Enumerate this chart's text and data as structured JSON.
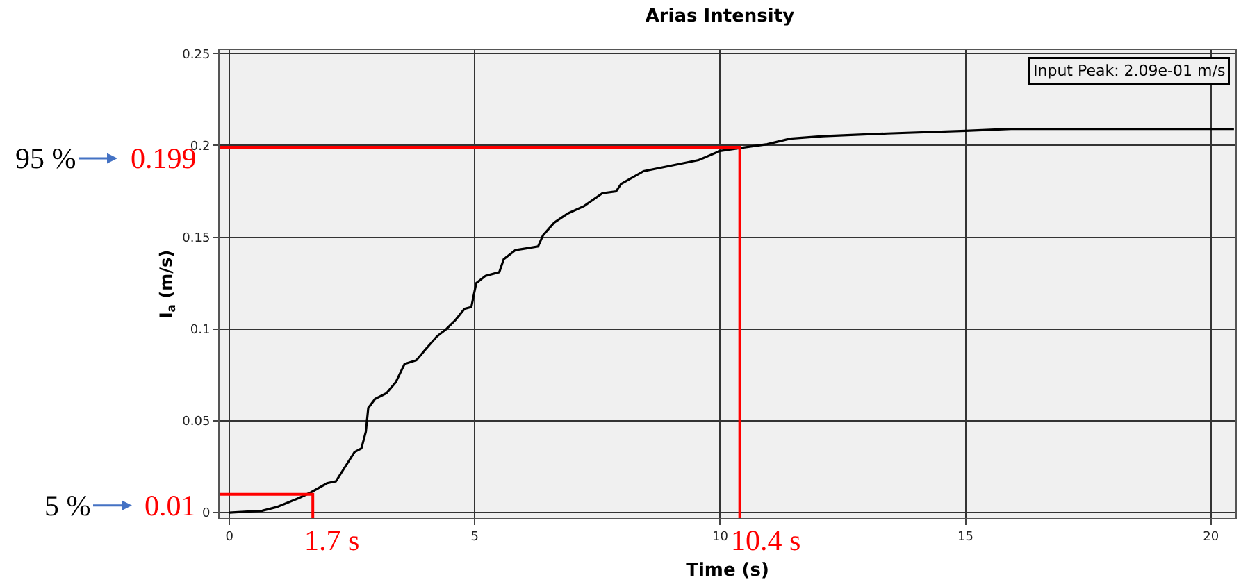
{
  "chart_data": {
    "type": "line",
    "title": "Arias Intensity",
    "xlabel": "Time (s)",
    "ylabel": "I$_{a}$ (m/s)",
    "xlim": [
      -0.2,
      20.5
    ],
    "xticks": [
      0,
      5,
      10,
      15,
      20
    ],
    "ylim": [
      -0.003,
      0.252
    ],
    "yticks": [
      0,
      0.05,
      0.1,
      0.15,
      0.2,
      0.25
    ],
    "grid": true,
    "marker": "none",
    "line_style": "solid",
    "series": [
      {
        "color": "#000000",
        "x": [
          0,
          0.67,
          0.96,
          1.42,
          1.66,
          1.99,
          2.17,
          2.36,
          2.55,
          2.69,
          2.78,
          2.83,
          2.97,
          3.2,
          3.39,
          3.57,
          3.81,
          4.0,
          4.23,
          4.42,
          4.61,
          4.79,
          4.93,
          5.03,
          5.22,
          5.5,
          5.59,
          5.83,
          6.29,
          6.39,
          6.62,
          6.9,
          7.23,
          7.6,
          7.88,
          7.98,
          8.44,
          9.0,
          9.56,
          10.0,
          10.5,
          10.96,
          11.43,
          12.09,
          13.4,
          15.0,
          15.93,
          20.47
        ],
        "values": [
          0,
          0.001,
          0.003,
          0.008,
          0.011,
          0.016,
          0.017,
          0.025,
          0.033,
          0.035,
          0.044,
          0.057,
          0.062,
          0.065,
          0.071,
          0.081,
          0.083,
          0.089,
          0.096,
          0.1,
          0.105,
          0.111,
          0.112,
          0.125,
          0.129,
          0.131,
          0.138,
          0.143,
          0.145,
          0.151,
          0.158,
          0.163,
          0.167,
          0.174,
          0.175,
          0.179,
          0.186,
          0.189,
          0.192,
          0.197,
          0.199,
          0.2007,
          0.2037,
          0.205,
          0.2065,
          0.208,
          0.209,
          0.209
        ]
      },
      {
        "color": "#ff0000",
        "x": [
          -0.2,
          1.7,
          1.7
        ],
        "values": [
          0.01,
          0.01,
          -0.003
        ]
      },
      {
        "color": "#ff0000",
        "x": [
          -0.2,
          10.4,
          10.4
        ],
        "values": [
          0.199,
          0.199,
          -0.003
        ]
      }
    ],
    "annotations": [
      "Input Peak: 2.09e-01 m/s",
      "95 %",
      {
        "text": "0.199",
        "x": -0.2,
        "y": 0.199
      },
      "5 %",
      {
        "text": "0.01",
        "x": -0.2,
        "y": 0.01
      },
      {
        "text": "1.7 s",
        "x": 1.7,
        "y": -0.003
      },
      {
        "text": "10.4 s",
        "x": 10.4,
        "y": -0.003
      }
    ]
  }
}
